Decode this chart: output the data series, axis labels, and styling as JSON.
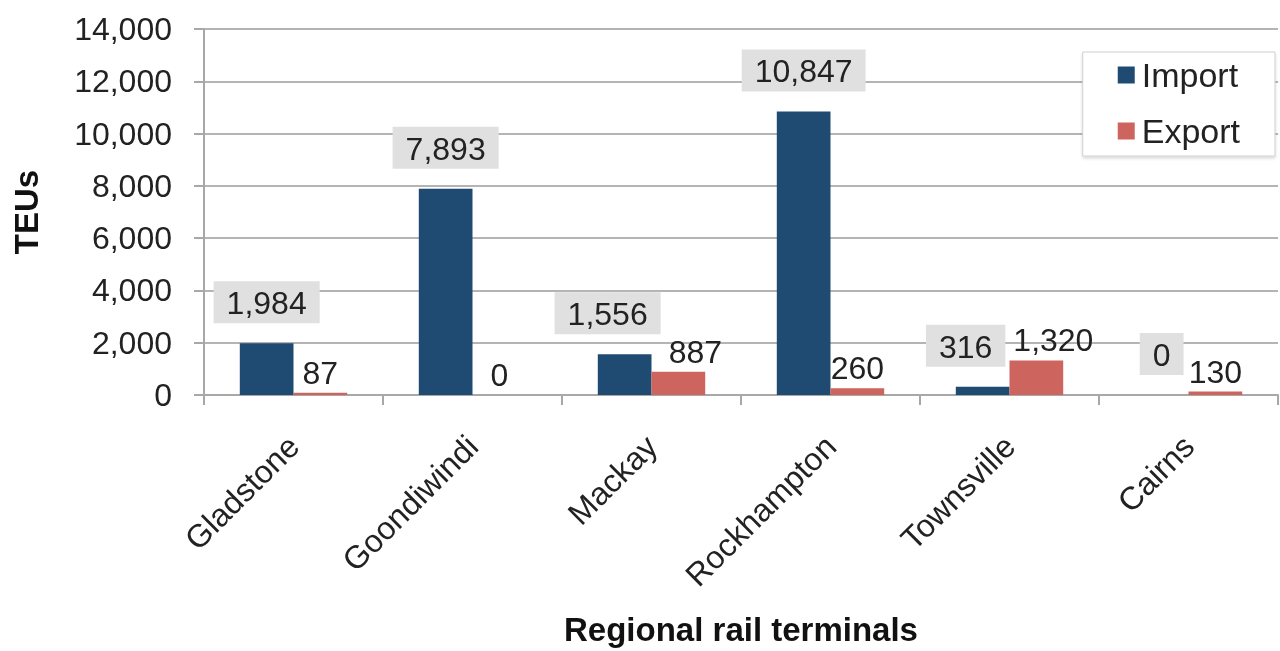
{
  "chart_data": {
    "type": "bar",
    "xlabel": "Regional rail terminals",
    "ylabel": "TEUs",
    "categories": [
      "Gladstone",
      "Goondiwindi",
      "Mackay",
      "Rockhampton",
      "Townsville",
      "Cairns"
    ],
    "series": [
      {
        "name": "Import",
        "color": "#1f4a72",
        "values": [
          1984,
          7893,
          1556,
          10847,
          316,
          0
        ],
        "value_labels": [
          "1,984",
          "7,893",
          "1,556",
          "10,847",
          "316",
          "0"
        ]
      },
      {
        "name": "Export",
        "color": "#cd655e",
        "values": [
          87,
          0,
          887,
          260,
          1320,
          130
        ],
        "value_labels": [
          "87",
          "0",
          "887",
          "260",
          "1,320",
          "130"
        ]
      }
    ],
    "ylim": [
      0,
      14000
    ],
    "yticks": [
      {
        "value": 0,
        "label": "0"
      },
      {
        "value": 2000,
        "label": "2,000"
      },
      {
        "value": 4000,
        "label": "4,000"
      },
      {
        "value": 6000,
        "label": "6,000"
      },
      {
        "value": 8000,
        "label": "8,000"
      },
      {
        "value": 10000,
        "label": "10,000"
      },
      {
        "value": 12000,
        "label": "12,000"
      },
      {
        "value": 14000,
        "label": "14,000"
      }
    ],
    "grid": "y",
    "legend": "top right"
  }
}
